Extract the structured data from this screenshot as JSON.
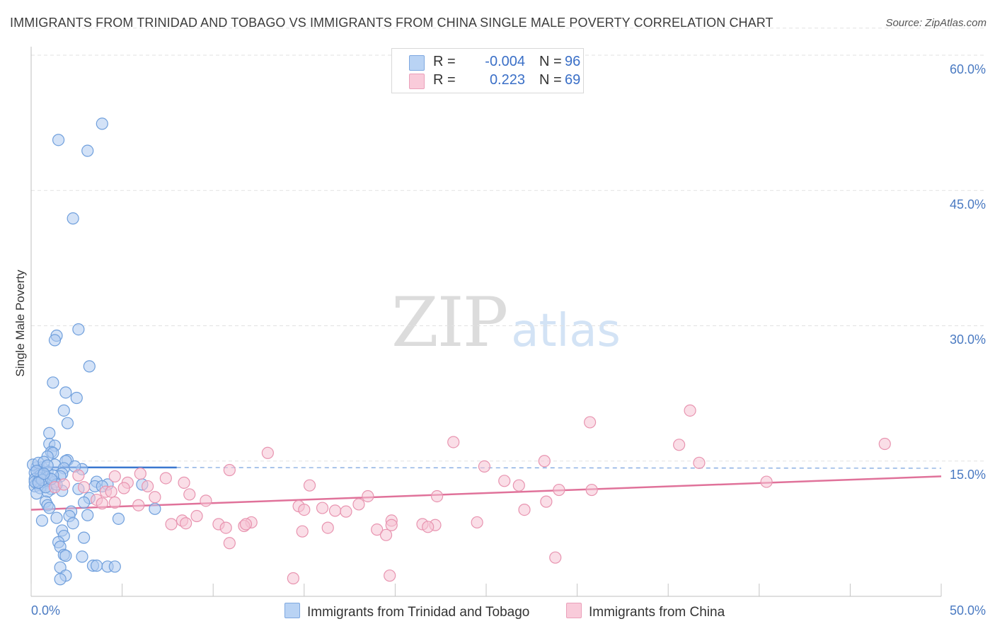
{
  "title": "IMMIGRANTS FROM TRINIDAD AND TOBAGO VS IMMIGRANTS FROM CHINA SINGLE MALE POVERTY CORRELATION CHART",
  "source": "Source: ZipAtlas.com",
  "watermark": {
    "zip": "ZIP",
    "atlas": "atlas"
  },
  "legend": {
    "rows": [
      {
        "r_label": "R =",
        "r_value": "-0.004",
        "n_label": "N =",
        "n_value": "96"
      },
      {
        "r_label": "R =",
        "r_value": "0.223",
        "n_label": "N =",
        "n_value": "69"
      }
    ]
  },
  "bottom_legend": {
    "series_a": "Immigrants from Trinidad and Tobago",
    "series_b": "Immigrants from China"
  },
  "colors": {
    "blue_fill": "#aecbf0",
    "blue_stroke": "#6f9fdc",
    "blue_line": "#3b78d0",
    "pink_fill": "#f6c3d4",
    "pink_stroke": "#e894b0",
    "pink_line": "#e0729a",
    "tick": "#4a7ac2",
    "grid": "#e2e2e2"
  },
  "chart_data": {
    "type": "scatter",
    "title": "IMMIGRANTS FROM TRINIDAD AND TOBAGO VS IMMIGRANTS FROM CHINA SINGLE MALE POVERTY CORRELATION CHART",
    "xlabel": "",
    "ylabel": "Single Male Poverty",
    "xlim": [
      0,
      50
    ],
    "ylim": [
      0,
      63
    ],
    "x_tick_labels": [
      "0.0%",
      "50.0%"
    ],
    "y_ticks": [
      15,
      30,
      45,
      60
    ],
    "y_tick_labels": [
      "15.0%",
      "30.0%",
      "45.0%",
      "60.0%"
    ],
    "grid": true,
    "series": [
      {
        "name": "Immigrants from Trinidad and Tobago",
        "color": "blue",
        "R": -0.004,
        "N": 96,
        "trend": {
          "x_start": 0,
          "y_start": 14.3,
          "x_end": 50,
          "y_end": 14.2,
          "solid_until_x": 8
        },
        "points": [
          [
            3.9,
            52.4
          ],
          [
            1.5,
            50.6
          ],
          [
            3.1,
            49.4
          ],
          [
            2.3,
            41.9
          ],
          [
            2.6,
            29.6
          ],
          [
            1.4,
            28.9
          ],
          [
            1.3,
            28.4
          ],
          [
            3.2,
            25.5
          ],
          [
            1.2,
            23.7
          ],
          [
            1.9,
            22.6
          ],
          [
            2.5,
            22.0
          ],
          [
            1.8,
            20.6
          ],
          [
            2.0,
            19.2
          ],
          [
            1.0,
            18.1
          ],
          [
            1.0,
            16.9
          ],
          [
            1.3,
            16.7
          ],
          [
            1.1,
            16.0
          ],
          [
            1.2,
            15.9
          ],
          [
            0.9,
            15.5
          ],
          [
            2.0,
            15.1
          ],
          [
            1.9,
            15.0
          ],
          [
            1.3,
            14.6
          ],
          [
            0.3,
            14.3
          ],
          [
            0.6,
            14.3
          ],
          [
            1.8,
            14.2
          ],
          [
            2.8,
            14.1
          ],
          [
            0.5,
            14.0
          ],
          [
            0.9,
            13.8
          ],
          [
            0.2,
            13.7
          ],
          [
            1.7,
            13.6
          ],
          [
            0.7,
            13.5
          ],
          [
            0.5,
            13.4
          ],
          [
            1.6,
            13.3
          ],
          [
            0.9,
            13.2
          ],
          [
            0.2,
            13.0
          ],
          [
            1.0,
            12.9
          ],
          [
            0.4,
            12.8
          ],
          [
            1.3,
            12.7
          ],
          [
            3.6,
            12.7
          ],
          [
            0.8,
            12.6
          ],
          [
            0.3,
            12.5
          ],
          [
            4.2,
            12.4
          ],
          [
            6.1,
            12.4
          ],
          [
            0.6,
            12.3
          ],
          [
            0.2,
            12.2
          ],
          [
            3.5,
            12.2
          ],
          [
            3.9,
            12.2
          ],
          [
            0.5,
            12.0
          ],
          [
            1.1,
            11.9
          ],
          [
            2.6,
            11.9
          ],
          [
            1.7,
            11.7
          ],
          [
            0.9,
            11.6
          ],
          [
            0.3,
            11.4
          ],
          [
            3.2,
            10.9
          ],
          [
            0.8,
            10.5
          ],
          [
            2.9,
            10.4
          ],
          [
            0.9,
            10.1
          ],
          [
            1.0,
            9.8
          ],
          [
            6.8,
            9.7
          ],
          [
            2.2,
            9.4
          ],
          [
            3.1,
            9.0
          ],
          [
            2.1,
            8.9
          ],
          [
            1.4,
            8.7
          ],
          [
            4.8,
            8.6
          ],
          [
            0.6,
            8.4
          ],
          [
            2.3,
            8.1
          ],
          [
            1.7,
            7.3
          ],
          [
            1.8,
            6.7
          ],
          [
            2.9,
            6.5
          ],
          [
            1.5,
            6.0
          ],
          [
            1.6,
            5.5
          ],
          [
            1.8,
            4.6
          ],
          [
            1.9,
            4.5
          ],
          [
            2.8,
            4.4
          ],
          [
            3.4,
            3.4
          ],
          [
            3.6,
            3.4
          ],
          [
            4.2,
            3.3
          ],
          [
            4.6,
            3.3
          ],
          [
            1.6,
            3.2
          ],
          [
            1.9,
            2.3
          ],
          [
            1.6,
            1.9
          ],
          [
            0.1,
            14.6
          ],
          [
            0.4,
            14.8
          ],
          [
            0.7,
            14.9
          ],
          [
            0.2,
            12.7
          ],
          [
            0.5,
            13.1
          ],
          [
            0.8,
            12.1
          ],
          [
            1.2,
            13.4
          ],
          [
            0.3,
            13.9
          ],
          [
            0.6,
            12.9
          ],
          [
            1.4,
            12.4
          ],
          [
            0.9,
            14.5
          ],
          [
            0.4,
            12.6
          ],
          [
            1.1,
            13.0
          ],
          [
            0.7,
            13.6
          ],
          [
            2.4,
            14.4
          ]
        ]
      },
      {
        "name": "Immigrants from China",
        "color": "pink",
        "R": 0.223,
        "N": 69,
        "trend": {
          "x_start": 0,
          "y_start": 9.6,
          "x_end": 50,
          "y_end": 13.3
        },
        "points": [
          [
            36.2,
            20.6
          ],
          [
            30.7,
            19.3
          ],
          [
            23.2,
            17.1
          ],
          [
            46.9,
            16.9
          ],
          [
            35.6,
            16.8
          ],
          [
            13.0,
            15.9
          ],
          [
            28.2,
            15.0
          ],
          [
            36.7,
            14.8
          ],
          [
            24.9,
            14.4
          ],
          [
            10.9,
            14.0
          ],
          [
            6.0,
            13.6
          ],
          [
            2.6,
            13.4
          ],
          [
            4.6,
            13.3
          ],
          [
            40.4,
            12.7
          ],
          [
            26.0,
            12.8
          ],
          [
            5.3,
            12.6
          ],
          [
            8.4,
            12.6
          ],
          [
            15.3,
            12.3
          ],
          [
            26.8,
            12.3
          ],
          [
            6.4,
            12.2
          ],
          [
            30.8,
            11.8
          ],
          [
            29.0,
            11.8
          ],
          [
            4.1,
            11.6
          ],
          [
            8.7,
            11.3
          ],
          [
            22.3,
            11.1
          ],
          [
            18.5,
            11.1
          ],
          [
            6.8,
            11.0
          ],
          [
            3.6,
            10.7
          ],
          [
            9.6,
            10.6
          ],
          [
            4.6,
            10.4
          ],
          [
            3.9,
            10.3
          ],
          [
            5.9,
            10.1
          ],
          [
            28.3,
            10.5
          ],
          [
            18.0,
            10.2
          ],
          [
            14.7,
            10.0
          ],
          [
            16.7,
            9.5
          ],
          [
            27.1,
            9.6
          ],
          [
            15.0,
            9.6
          ],
          [
            17.3,
            9.4
          ],
          [
            9.1,
            8.9
          ],
          [
            8.3,
            8.4
          ],
          [
            12.1,
            8.2
          ],
          [
            24.5,
            8.2
          ],
          [
            19.8,
            8.4
          ],
          [
            19.8,
            7.9
          ],
          [
            7.7,
            8.0
          ],
          [
            10.3,
            8.0
          ],
          [
            11.7,
            7.8
          ],
          [
            21.5,
            8.0
          ],
          [
            22.2,
            7.9
          ],
          [
            16.3,
            7.6
          ],
          [
            10.7,
            7.6
          ],
          [
            14.9,
            7.2
          ],
          [
            19.0,
            7.4
          ],
          [
            21.8,
            7.7
          ],
          [
            8.5,
            8.1
          ],
          [
            10.9,
            5.9
          ],
          [
            19.5,
            6.8
          ],
          [
            28.8,
            4.3
          ],
          [
            14.4,
            2.0
          ],
          [
            19.7,
            2.3
          ],
          [
            1.3,
            12.1
          ],
          [
            1.8,
            12.4
          ],
          [
            4.4,
            11.6
          ],
          [
            5.1,
            12.0
          ],
          [
            7.4,
            13.1
          ],
          [
            11.8,
            8.0
          ],
          [
            16.0,
            9.8
          ],
          [
            2.9,
            12.1
          ]
        ]
      }
    ]
  },
  "axis_labels": {
    "y": "Single Male Poverty",
    "x_min": "0.0%",
    "x_max": "50.0%",
    "y_ticks": [
      "15.0%",
      "30.0%",
      "45.0%",
      "60.0%"
    ]
  }
}
